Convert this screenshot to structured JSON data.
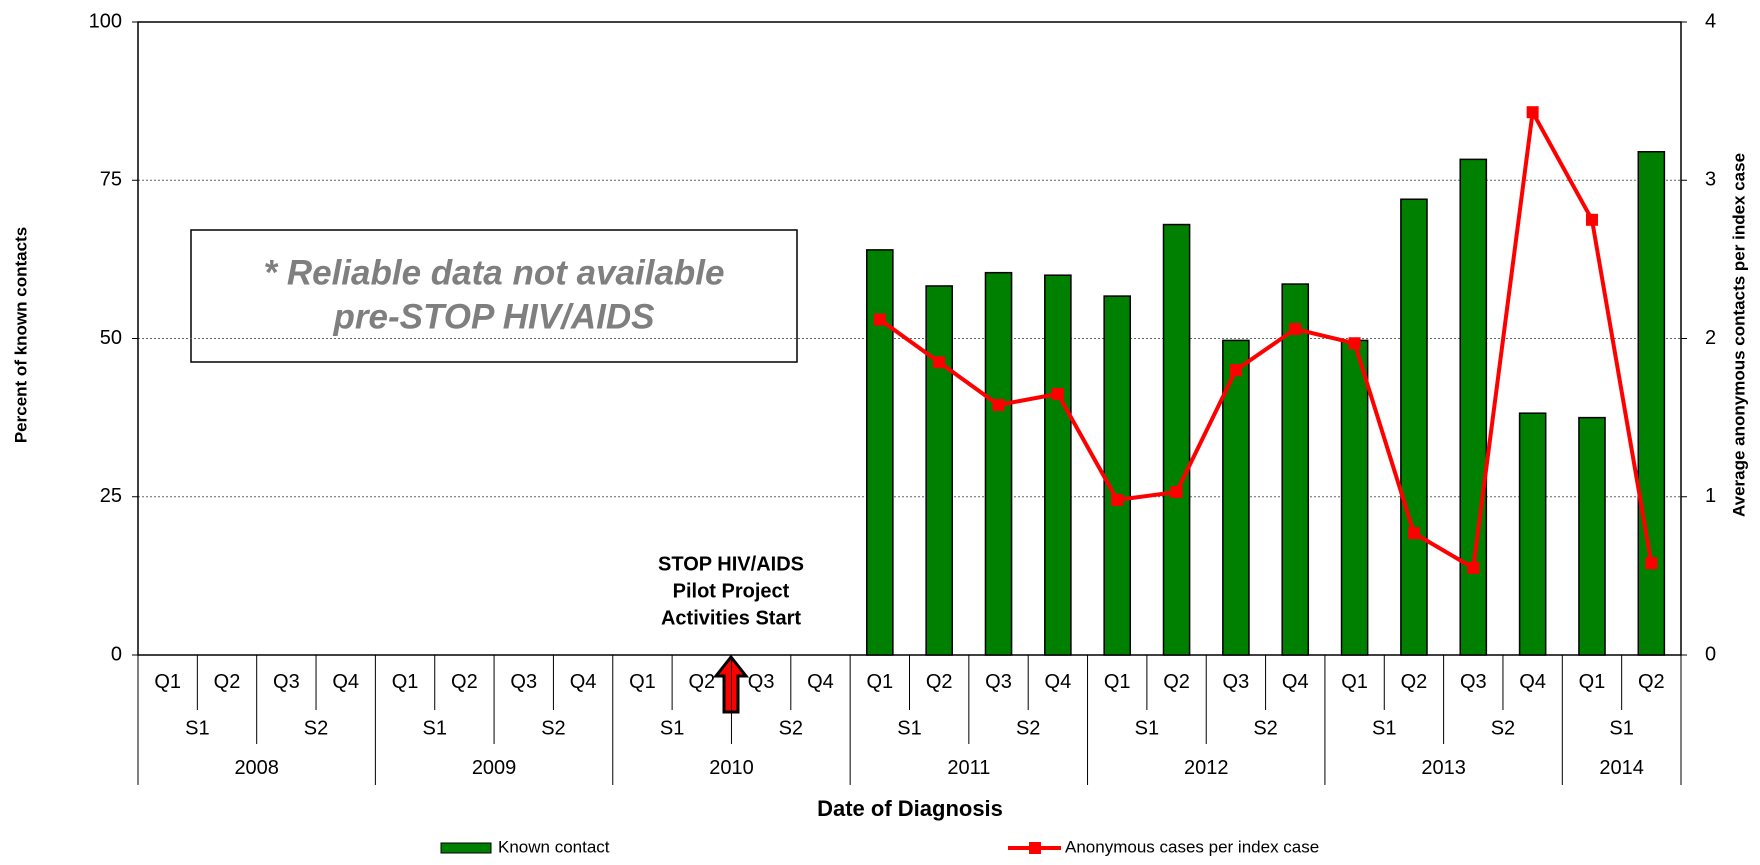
{
  "chart_data": {
    "type": "bar",
    "ylabel": "Percent of known contacts",
    "y2label": "Average anonymous contacts per index case",
    "xlabel": "Date of Diagnosis",
    "categories": [
      "Q1",
      "Q2",
      "Q3",
      "Q4",
      "Q1",
      "Q2",
      "Q3",
      "Q4",
      "Q1",
      "Q2",
      "Q3",
      "Q4",
      "Q1",
      "Q2",
      "Q3",
      "Q4",
      "Q1",
      "Q2",
      "Q3",
      "Q4",
      "Q1",
      "Q2",
      "Q3",
      "Q4",
      "Q1",
      "Q2"
    ],
    "halves": [
      "S1",
      "S2",
      "S1",
      "S2",
      "S1",
      "S2",
      "S1",
      "S2",
      "S1",
      "S2",
      "S1",
      "S2",
      "S1"
    ],
    "years": [
      "2008",
      "2009",
      "2010",
      "2011",
      "2012",
      "2013",
      "2014"
    ],
    "series": [
      {
        "name": "Known contact",
        "type": "bar",
        "color": "#008000",
        "values": [
          null,
          null,
          null,
          null,
          null,
          null,
          null,
          null,
          null,
          null,
          null,
          null,
          64,
          58.3,
          60.4,
          60,
          56.7,
          68,
          49.7,
          58.6,
          49.7,
          72,
          78.3,
          38.2,
          37.5,
          79.5
        ]
      },
      {
        "name": "Anonymous cases per index case",
        "type": "line",
        "axis": "y2",
        "color": "#ff0000",
        "values": [
          null,
          null,
          null,
          null,
          null,
          null,
          null,
          null,
          null,
          null,
          null,
          null,
          2.12,
          1.85,
          1.58,
          1.65,
          0.98,
          1.03,
          1.8,
          2.06,
          1.97,
          0.77,
          0.55,
          3.43,
          2.75,
          0.58
        ]
      }
    ],
    "ylim": [
      0,
      100
    ],
    "yticks": [
      0,
      25,
      50,
      75,
      100
    ],
    "y2lim": [
      0,
      4
    ],
    "y2ticks": [
      0,
      1,
      2,
      3,
      4
    ],
    "grid": true,
    "annotations": {
      "note": [
        "* Reliable data not available",
        "pre-STOP HIV/AIDS"
      ],
      "marker": [
        "STOP HIV/AIDS",
        "Pilot Project",
        "Activities Start"
      ]
    }
  }
}
